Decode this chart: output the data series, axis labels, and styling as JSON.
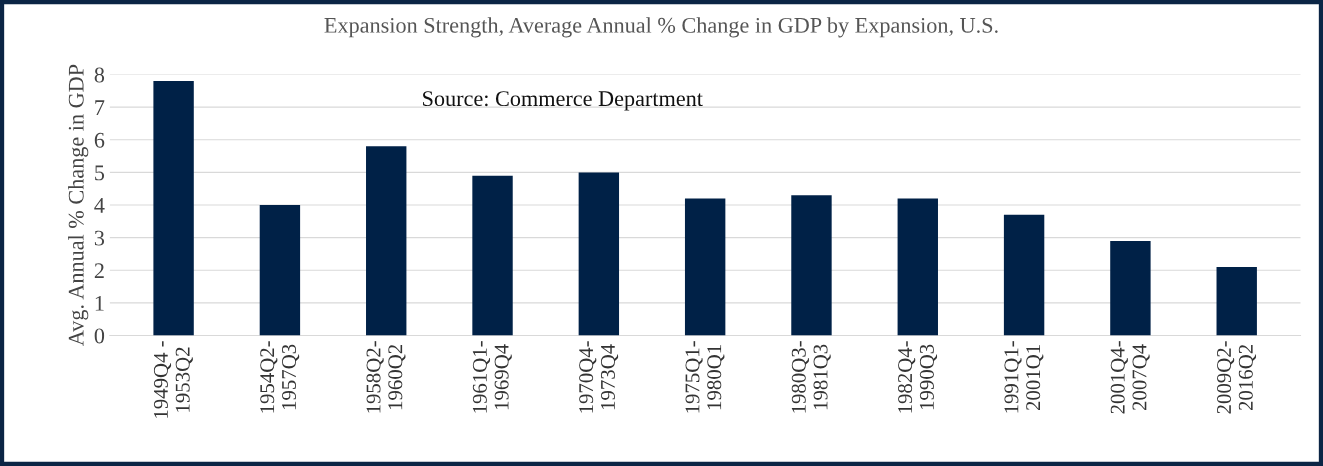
{
  "chart_data": {
    "type": "bar",
    "title": "Expansion Strength, Average Annual % Change in GDP by Expansion, U.S.",
    "ylabel": "Avg. Annual % Change in GDP",
    "categories": [
      "1949Q4 -\n1953Q2",
      "1954Q2-\n1957Q3",
      "1958Q2-\n1960Q2",
      "1961Q1-\n1969Q4",
      "1970Q4-\n1973Q4",
      "1975Q1-\n1980Q1",
      "1980Q3-\n1981Q3",
      "1982Q4-\n1990Q3",
      "1991Q1-\n2001Q1",
      "2001Q4-\n2007Q4",
      "2009Q2-\n2016Q2"
    ],
    "values": [
      7.8,
      4.0,
      5.8,
      4.9,
      5.0,
      4.2,
      4.3,
      4.2,
      3.7,
      2.9,
      2.1
    ],
    "color": "#002147",
    "ylim": [
      0,
      8
    ],
    "yticks": [
      0,
      1,
      2,
      3,
      4,
      5,
      6,
      7,
      8
    ],
    "grid": "y",
    "legend": false,
    "annotations": [
      "Source: Commerce Department"
    ]
  }
}
